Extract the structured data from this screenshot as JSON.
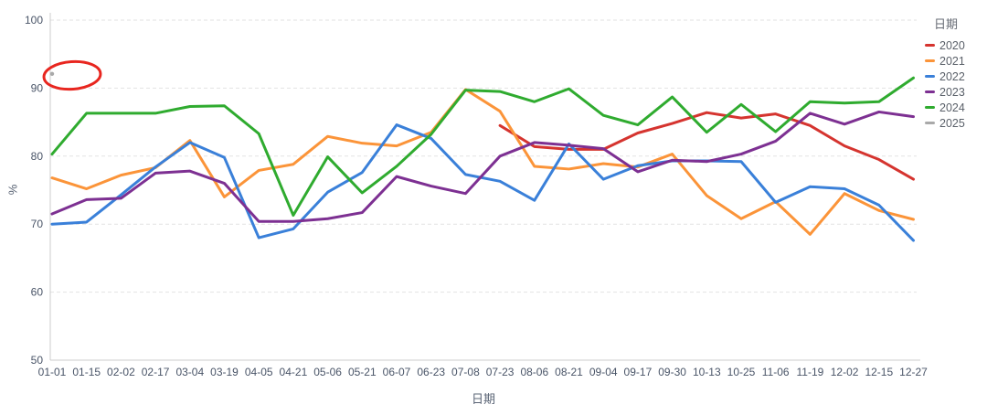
{
  "chart": {
    "legend_title": "日期",
    "x_axis_title": "日期",
    "y_axis_title": "%",
    "y_tick_labels": [
      "50",
      "60",
      "70",
      "80",
      "90",
      "100"
    ],
    "x_tick_labels": [
      "01-01",
      "01-15",
      "02-02",
      "02-17",
      "03-04",
      "03-19",
      "04-05",
      "04-21",
      "05-06",
      "05-21",
      "06-07",
      "06-23",
      "07-08",
      "07-23",
      "08-06",
      "08-21",
      "09-04",
      "09-17",
      "09-30",
      "10-13",
      "10-25",
      "11-06",
      "11-19",
      "12-02",
      "12-15",
      "12-27"
    ],
    "colors": {
      "grid": "#e2e2e2",
      "axis": "#cccccc",
      "tick_text": "#4a5568",
      "annotation": "#e8261f"
    }
  },
  "chart_data": {
    "type": "line",
    "title": "",
    "xlabel": "日期",
    "ylabel": "%",
    "ylim": [
      50,
      100
    ],
    "y_ticks": [
      50,
      60,
      70,
      80,
      90,
      100
    ],
    "grid": "horizontal-dashed",
    "legend_position": "right",
    "legend_title": "日期",
    "categories": [
      "01-01",
      "01-15",
      "02-02",
      "02-17",
      "03-04",
      "03-19",
      "04-05",
      "04-21",
      "05-06",
      "05-21",
      "06-07",
      "06-23",
      "07-08",
      "07-23",
      "08-06",
      "08-21",
      "09-04",
      "09-17",
      "09-30",
      "10-13",
      "10-25",
      "11-06",
      "11-19",
      "12-02",
      "12-15",
      "12-27"
    ],
    "series": [
      {
        "name": "2020",
        "color": "#d5342f",
        "values": [
          null,
          null,
          null,
          null,
          null,
          null,
          null,
          null,
          null,
          null,
          null,
          null,
          null,
          84.5,
          81.4,
          81.0,
          81.0,
          83.4,
          84.8,
          86.4,
          85.6,
          86.2,
          84.5,
          81.5,
          79.5,
          76.6
        ]
      },
      {
        "name": "2021",
        "color": "#fb9439",
        "values": [
          76.8,
          75.2,
          77.2,
          78.3,
          82.3,
          74.0,
          77.9,
          78.8,
          82.9,
          81.9,
          81.5,
          83.5,
          89.8,
          86.6,
          78.5,
          78.1,
          78.9,
          78.4,
          80.3,
          74.2,
          70.8,
          73.3,
          68.5,
          74.5,
          72.0,
          70.7
        ]
      },
      {
        "name": "2022",
        "color": "#3a80d9",
        "values": [
          70.0,
          70.3,
          74.3,
          78.4,
          82.0,
          79.8,
          68.0,
          69.3,
          74.7,
          77.6,
          84.6,
          82.6,
          77.3,
          76.3,
          73.5,
          81.8,
          76.6,
          78.6,
          79.3,
          79.3,
          79.2,
          73.2,
          75.5,
          75.2,
          72.8,
          67.6
        ]
      },
      {
        "name": "2023",
        "color": "#7d3092",
        "values": [
          71.5,
          73.6,
          73.8,
          77.5,
          77.8,
          76.0,
          70.4,
          70.4,
          70.8,
          71.7,
          77.0,
          75.6,
          74.5,
          80.0,
          82.0,
          81.6,
          81.1,
          77.7,
          79.4,
          79.2,
          80.3,
          82.2,
          86.3,
          84.7,
          86.5,
          85.8
        ]
      },
      {
        "name": "2024",
        "color": "#2fab2f",
        "values": [
          80.3,
          86.3,
          86.3,
          86.3,
          87.3,
          87.4,
          83.3,
          71.3,
          79.9,
          74.6,
          78.5,
          83.2,
          89.7,
          89.5,
          88.0,
          89.9,
          86.0,
          84.6,
          88.7,
          83.5,
          87.6,
          83.6,
          88.0,
          87.8,
          88.0,
          91.5
        ]
      },
      {
        "name": "2025",
        "color": "#a9a9a9",
        "values": [
          92.1,
          null,
          null,
          null,
          null,
          null,
          null,
          null,
          null,
          null,
          null,
          null,
          null,
          null,
          null,
          null,
          null,
          null,
          null,
          null,
          null,
          null,
          null,
          null,
          null,
          null
        ]
      }
    ],
    "annotation": {
      "type": "ellipse",
      "meaning": "red hand-drawn circle highlighting the single 2025 data point at 01-01",
      "center_category_index": 0,
      "center_value": 92,
      "color": "#e8261f"
    }
  }
}
